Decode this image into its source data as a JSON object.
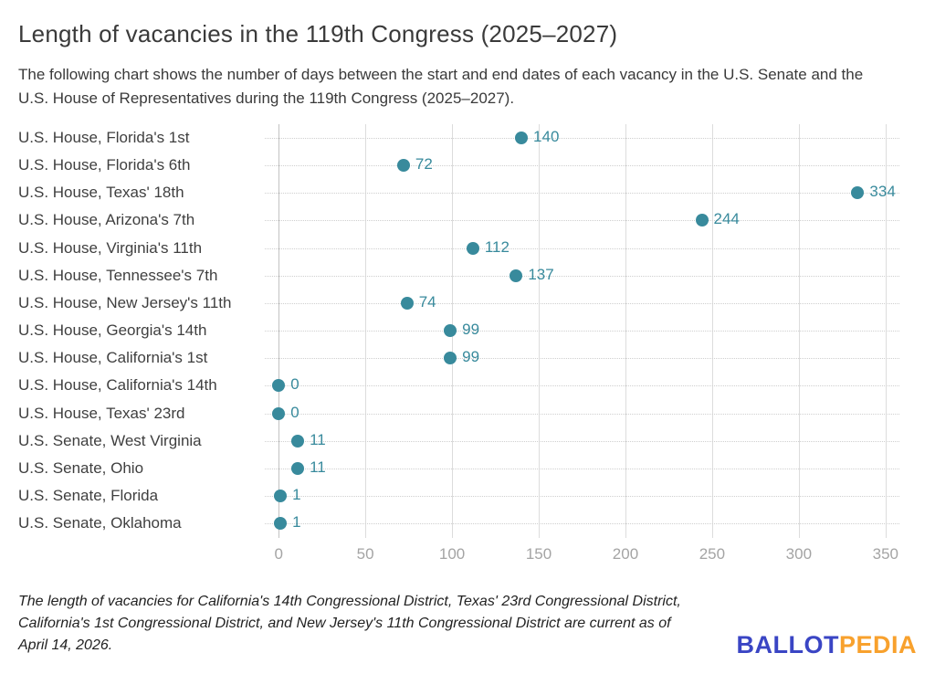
{
  "header": {
    "title": "Length of vacancies in the 119th Congress (2025–2027)",
    "subtitle": "The following chart shows the number of days between the start and end dates of each vacancy in the U.S. Senate and the U.S. House of Representatives during the 119th Congress (2025–2027)."
  },
  "chart_data": {
    "type": "scatter",
    "orientation": "horizontal",
    "title": "Length of vacancies in the 119th Congress (2025–2027)",
    "xlabel": "",
    "ylabel": "",
    "categories": [
      "U.S. House, Florida's 1st",
      "U.S. House, Florida's 6th",
      "U.S. House, Texas' 18th",
      "U.S. House, Arizona's 7th",
      "U.S. House, Virginia's 11th",
      "U.S. House, Tennessee's 7th",
      "U.S. House, New Jersey's 11th",
      "U.S. House, Georgia's 14th",
      "U.S. House, California's 1st",
      "U.S. House, California's 14th",
      "U.S. House, Texas' 23rd",
      "U.S. Senate, West Virginia",
      "U.S. Senate, Ohio",
      "U.S. Senate, Florida",
      "U.S. Senate, Oklahoma"
    ],
    "values": [
      140,
      72,
      334,
      244,
      112,
      137,
      74,
      99,
      99,
      0,
      0,
      11,
      11,
      1,
      1
    ],
    "value_labels_shown": true,
    "xticks": [
      0,
      50,
      100,
      150,
      200,
      250,
      300,
      350
    ],
    "xlim": [
      -8,
      358
    ],
    "grid": {
      "vertical": "solid",
      "horizontal": "dotted-per-category"
    },
    "legend": "none",
    "dot_color": "#388A9C",
    "value_label_color": "#388A9C"
  },
  "footer": {
    "note": "The length of vacancies for California's 14th Congressional District, Texas' 23rd Congressional District, California's 1st Congressional District, and New Jersey's 11th Congressional District are current as of April 14, 2026.",
    "logo": {
      "part1": "BALLOT",
      "part2": "PEDIA",
      "part1_color": "#3A45C4",
      "part2_color": "#F8A12D"
    }
  }
}
